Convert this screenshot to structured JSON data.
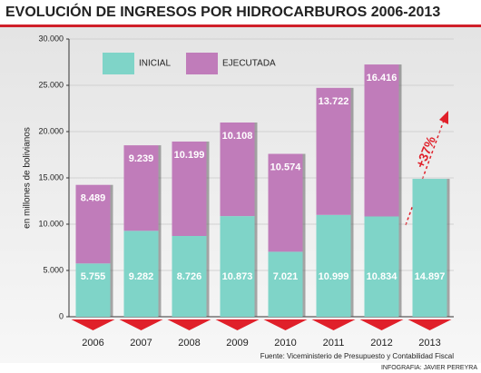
{
  "chart_data": {
    "type": "stacked-bar",
    "title": "EVOLUCIÓN DE INGRESOS POR HIDROCARBUROS 2006-2013",
    "y_label": "en millones de bolivianos",
    "categories": [
      "2006",
      "2007",
      "2008",
      "2009",
      "2010",
      "2011",
      "2012",
      "2013"
    ],
    "series": [
      {
        "name": "INICIAL",
        "color": "#7fd4c8",
        "values": [
          5755,
          9282,
          8726,
          10873,
          7021,
          10999,
          10834,
          14897
        ],
        "value_labels": [
          "5.755",
          "9.282",
          "8.726",
          "10.873",
          "7.021",
          "10.999",
          "10.834",
          "14.897"
        ]
      },
      {
        "name": "EJECUTADA",
        "color": "#c07cba",
        "values": [
          8489,
          9239,
          10199,
          10108,
          10574,
          13722,
          16416,
          null
        ],
        "value_labels": [
          "8.489",
          "9.239",
          "10.199",
          "10.108",
          "10.574",
          "13.722",
          "16.416",
          null
        ]
      }
    ],
    "ylim": [
      0,
      30000
    ],
    "yticks": [
      0,
      {
        "value": 5000,
        "label": "5.000"
      },
      {
        "value": 10000,
        "label": "10.000"
      },
      {
        "value": 15000,
        "label": "15.000"
      },
      {
        "value": 20000,
        "label": "20.000"
      },
      {
        "value": 25000,
        "label": "25.000"
      },
      {
        "value": 30000,
        "label": "30.000"
      }
    ],
    "grid": true,
    "annotation": "+37%",
    "source": "Fuente: Viceministerio de Presupuesto y Contabilidad Fiscal",
    "credit": "INFOGRAFIA: JAVIER PEREYRA"
  }
}
